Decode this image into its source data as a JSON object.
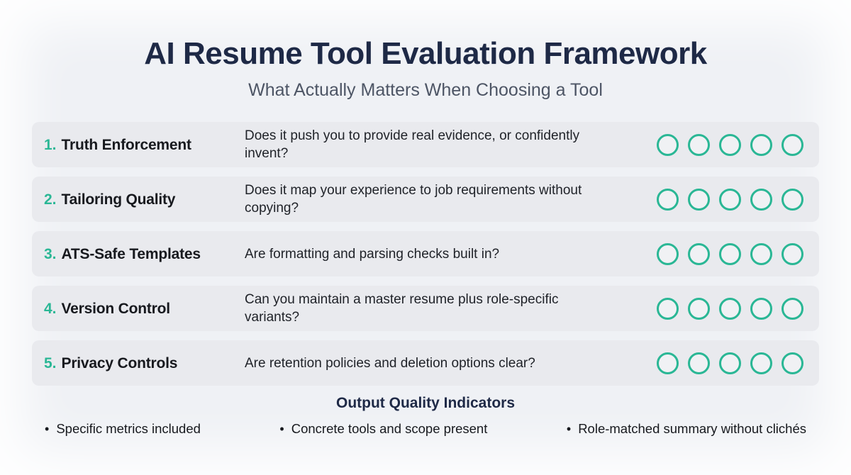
{
  "header": {
    "title": "AI Resume Tool Evaluation Framework",
    "subtitle": "What Actually Matters When Choosing a Tool"
  },
  "criteria": [
    {
      "number": "1.",
      "label": "Truth Enforcement",
      "question": "Does it push you to provide real evidence, or confidently invent?",
      "rating_circles": 5,
      "circles_filled": 0
    },
    {
      "number": "2.",
      "label": "Tailoring Quality",
      "question": "Does it map your experience to job requirements without copying?",
      "rating_circles": 5,
      "circles_filled": 0
    },
    {
      "number": "3.",
      "label": "ATS-Safe Templates",
      "question": "Are formatting and parsing checks built in?",
      "rating_circles": 5,
      "circles_filled": 0
    },
    {
      "number": "4.",
      "label": "Version Control",
      "question": "Can you maintain a master resume plus role-specific variants?",
      "rating_circles": 5,
      "circles_filled": 0
    },
    {
      "number": "5.",
      "label": "Privacy Controls",
      "question": "Are retention policies and deletion options clear?",
      "rating_circles": 5,
      "circles_filled": 0
    }
  ],
  "footer": {
    "heading": "Output Quality Indicators",
    "bullets": [
      "Specific metrics included",
      "Concrete tools and scope present",
      "Role-matched summary without clichés"
    ]
  },
  "colors": {
    "accent_teal": "#2ab795",
    "title_navy": "#1e2946",
    "subtitle_gray": "#4d5565",
    "row_background": "#e9eaee",
    "page_background": "#eff1f5"
  }
}
